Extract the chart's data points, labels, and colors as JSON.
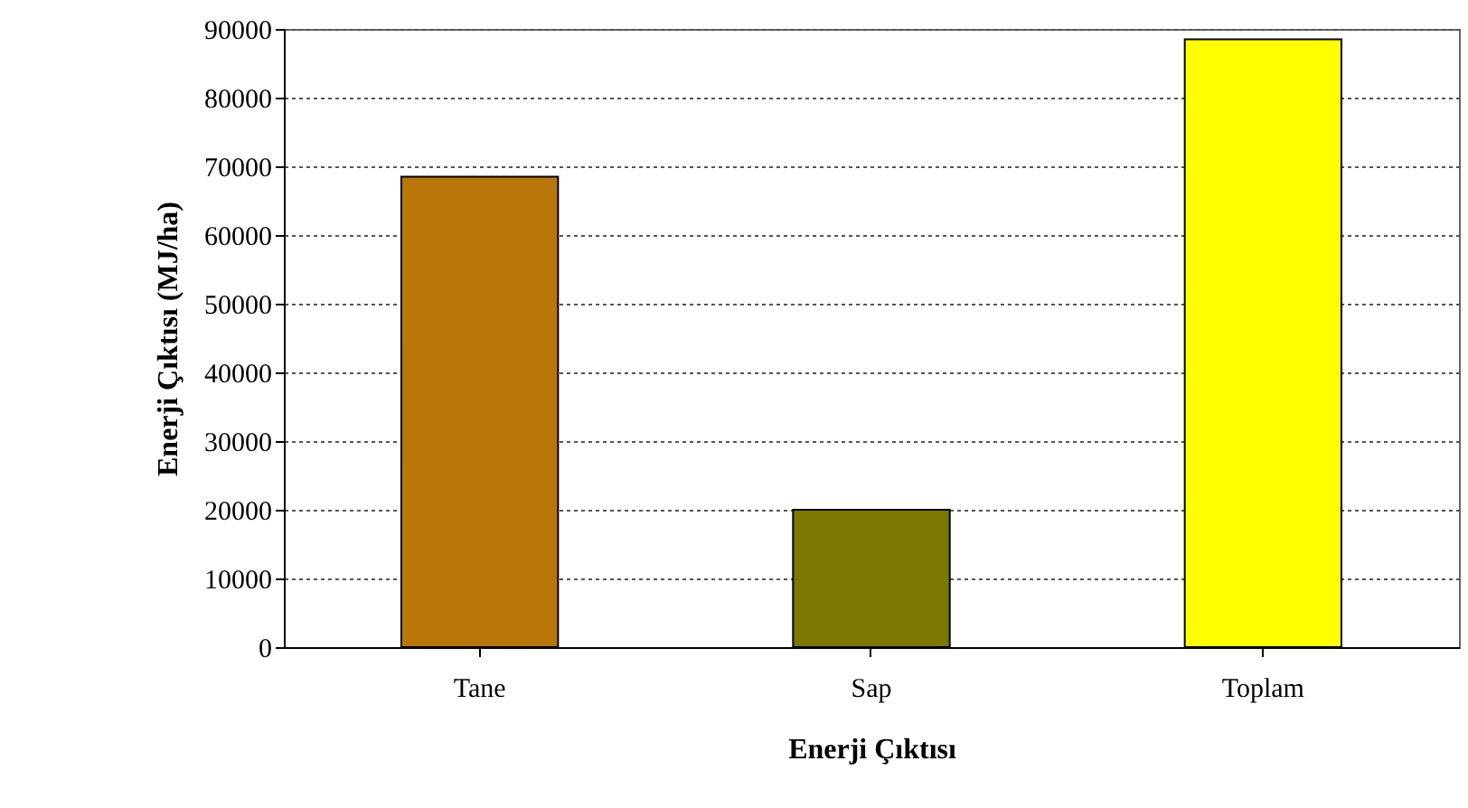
{
  "chart_data": {
    "type": "bar",
    "xlabel": "Enerji Çıktısı",
    "ylabel": "Enerji Çıktısı (MJ/ha)",
    "categories": [
      "Tane",
      "Sap",
      "Toplam"
    ],
    "values": [
      68500,
      20000,
      88500
    ],
    "colors": [
      "#b87708",
      "#7a7800",
      "#ffff00"
    ],
    "ylim": [
      0,
      90000
    ],
    "yticks": [
      0,
      10000,
      20000,
      30000,
      40000,
      50000,
      60000,
      70000,
      80000,
      90000
    ],
    "grid": "y"
  }
}
